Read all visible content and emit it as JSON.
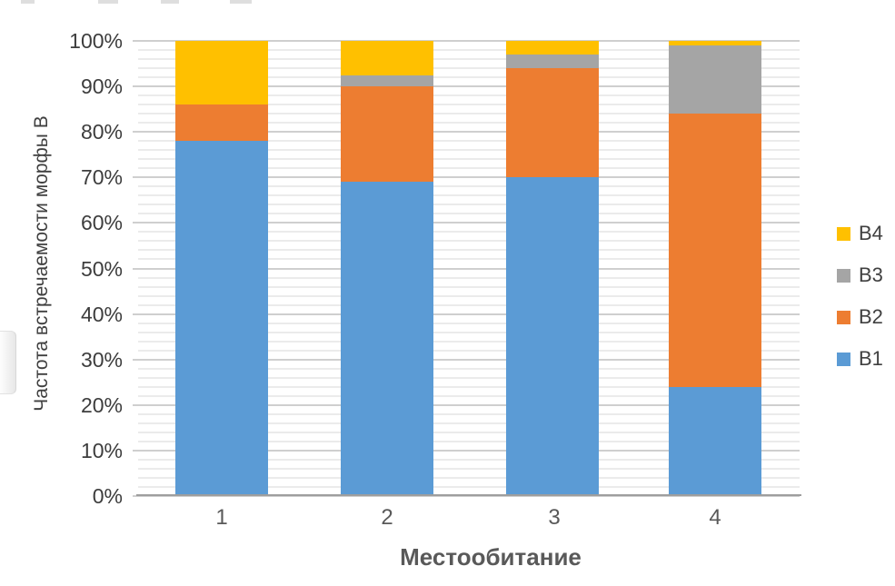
{
  "chart_data": {
    "type": "bar",
    "stacked": true,
    "units": "percent",
    "title": "",
    "xlabel": "Местообитание",
    "ylabel": "Частота встречаемости морфы В",
    "categories": [
      "1",
      "2",
      "3",
      "4"
    ],
    "series": [
      {
        "name": "B1",
        "color": "#5B9BD5",
        "values": [
          78,
          69,
          70,
          24
        ]
      },
      {
        "name": "B2",
        "color": "#ED7D31",
        "values": [
          8,
          21,
          24,
          60
        ]
      },
      {
        "name": "B3",
        "color": "#A5A5A5",
        "values": [
          0,
          2.5,
          3,
          15
        ]
      },
      {
        "name": "B4",
        "color": "#FFC000",
        "values": [
          14,
          7.5,
          3,
          1
        ]
      }
    ],
    "ylim": [
      0,
      100
    ],
    "yticks": [
      "0%",
      "10%",
      "20%",
      "30%",
      "40%",
      "50%",
      "60%",
      "70%",
      "80%",
      "90%",
      "100%"
    ],
    "ytick_minor_step": 2,
    "ytick_major_step": 10,
    "grid": "horizontal; minor every 2%, major every 10%",
    "legend": {
      "position": "right",
      "order_top_to_bottom": [
        "B4",
        "B3",
        "B2",
        "B1"
      ]
    }
  }
}
